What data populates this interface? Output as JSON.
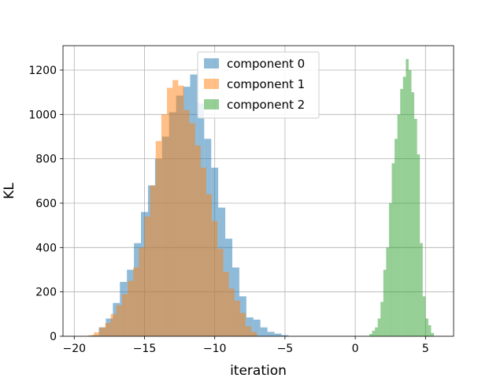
{
  "chart_data": {
    "type": "histogram",
    "title": "",
    "xlabel": "iteration",
    "ylabel": "KL",
    "xlim": [
      -20.8,
      7.0
    ],
    "ylim": [
      0,
      1310
    ],
    "xticks": [
      -20,
      -15,
      -10,
      -5,
      0,
      5
    ],
    "yticks": [
      0,
      200,
      400,
      600,
      800,
      1000,
      1200
    ],
    "grid": true,
    "legend_position": "top-center",
    "series": [
      {
        "name": "component 0",
        "color": "#1f77b4",
        "bins": {
          "start": -18.75,
          "width": 0.5,
          "counts": [
            5,
            40,
            80,
            150,
            245,
            300,
            420,
            560,
            680,
            800,
            900,
            1010,
            1085,
            1125,
            1180,
            1050,
            890,
            760,
            580,
            440,
            310,
            180,
            85,
            75,
            40,
            20,
            12,
            5
          ]
        }
      },
      {
        "name": "component 1",
        "color": "#ff7f0e",
        "bins": {
          "start": -19.0,
          "width": 0.4,
          "counts": [
            5,
            18,
            40,
            60,
            100,
            140,
            190,
            250,
            310,
            400,
            540,
            680,
            880,
            1000,
            1120,
            1155,
            1130,
            1020,
            960,
            860,
            760,
            640,
            520,
            395,
            290,
            215,
            160,
            105,
            45,
            20
          ]
        }
      },
      {
        "name": "component 2",
        "color": "#2ca02c",
        "bins": {
          "start": 1.0,
          "width": 0.2,
          "counts": [
            10,
            25,
            40,
            80,
            155,
            300,
            400,
            600,
            780,
            890,
            1000,
            1115,
            1170,
            1250,
            1200,
            1100,
            980,
            820,
            420,
            180,
            80,
            50,
            15
          ]
        }
      }
    ]
  }
}
